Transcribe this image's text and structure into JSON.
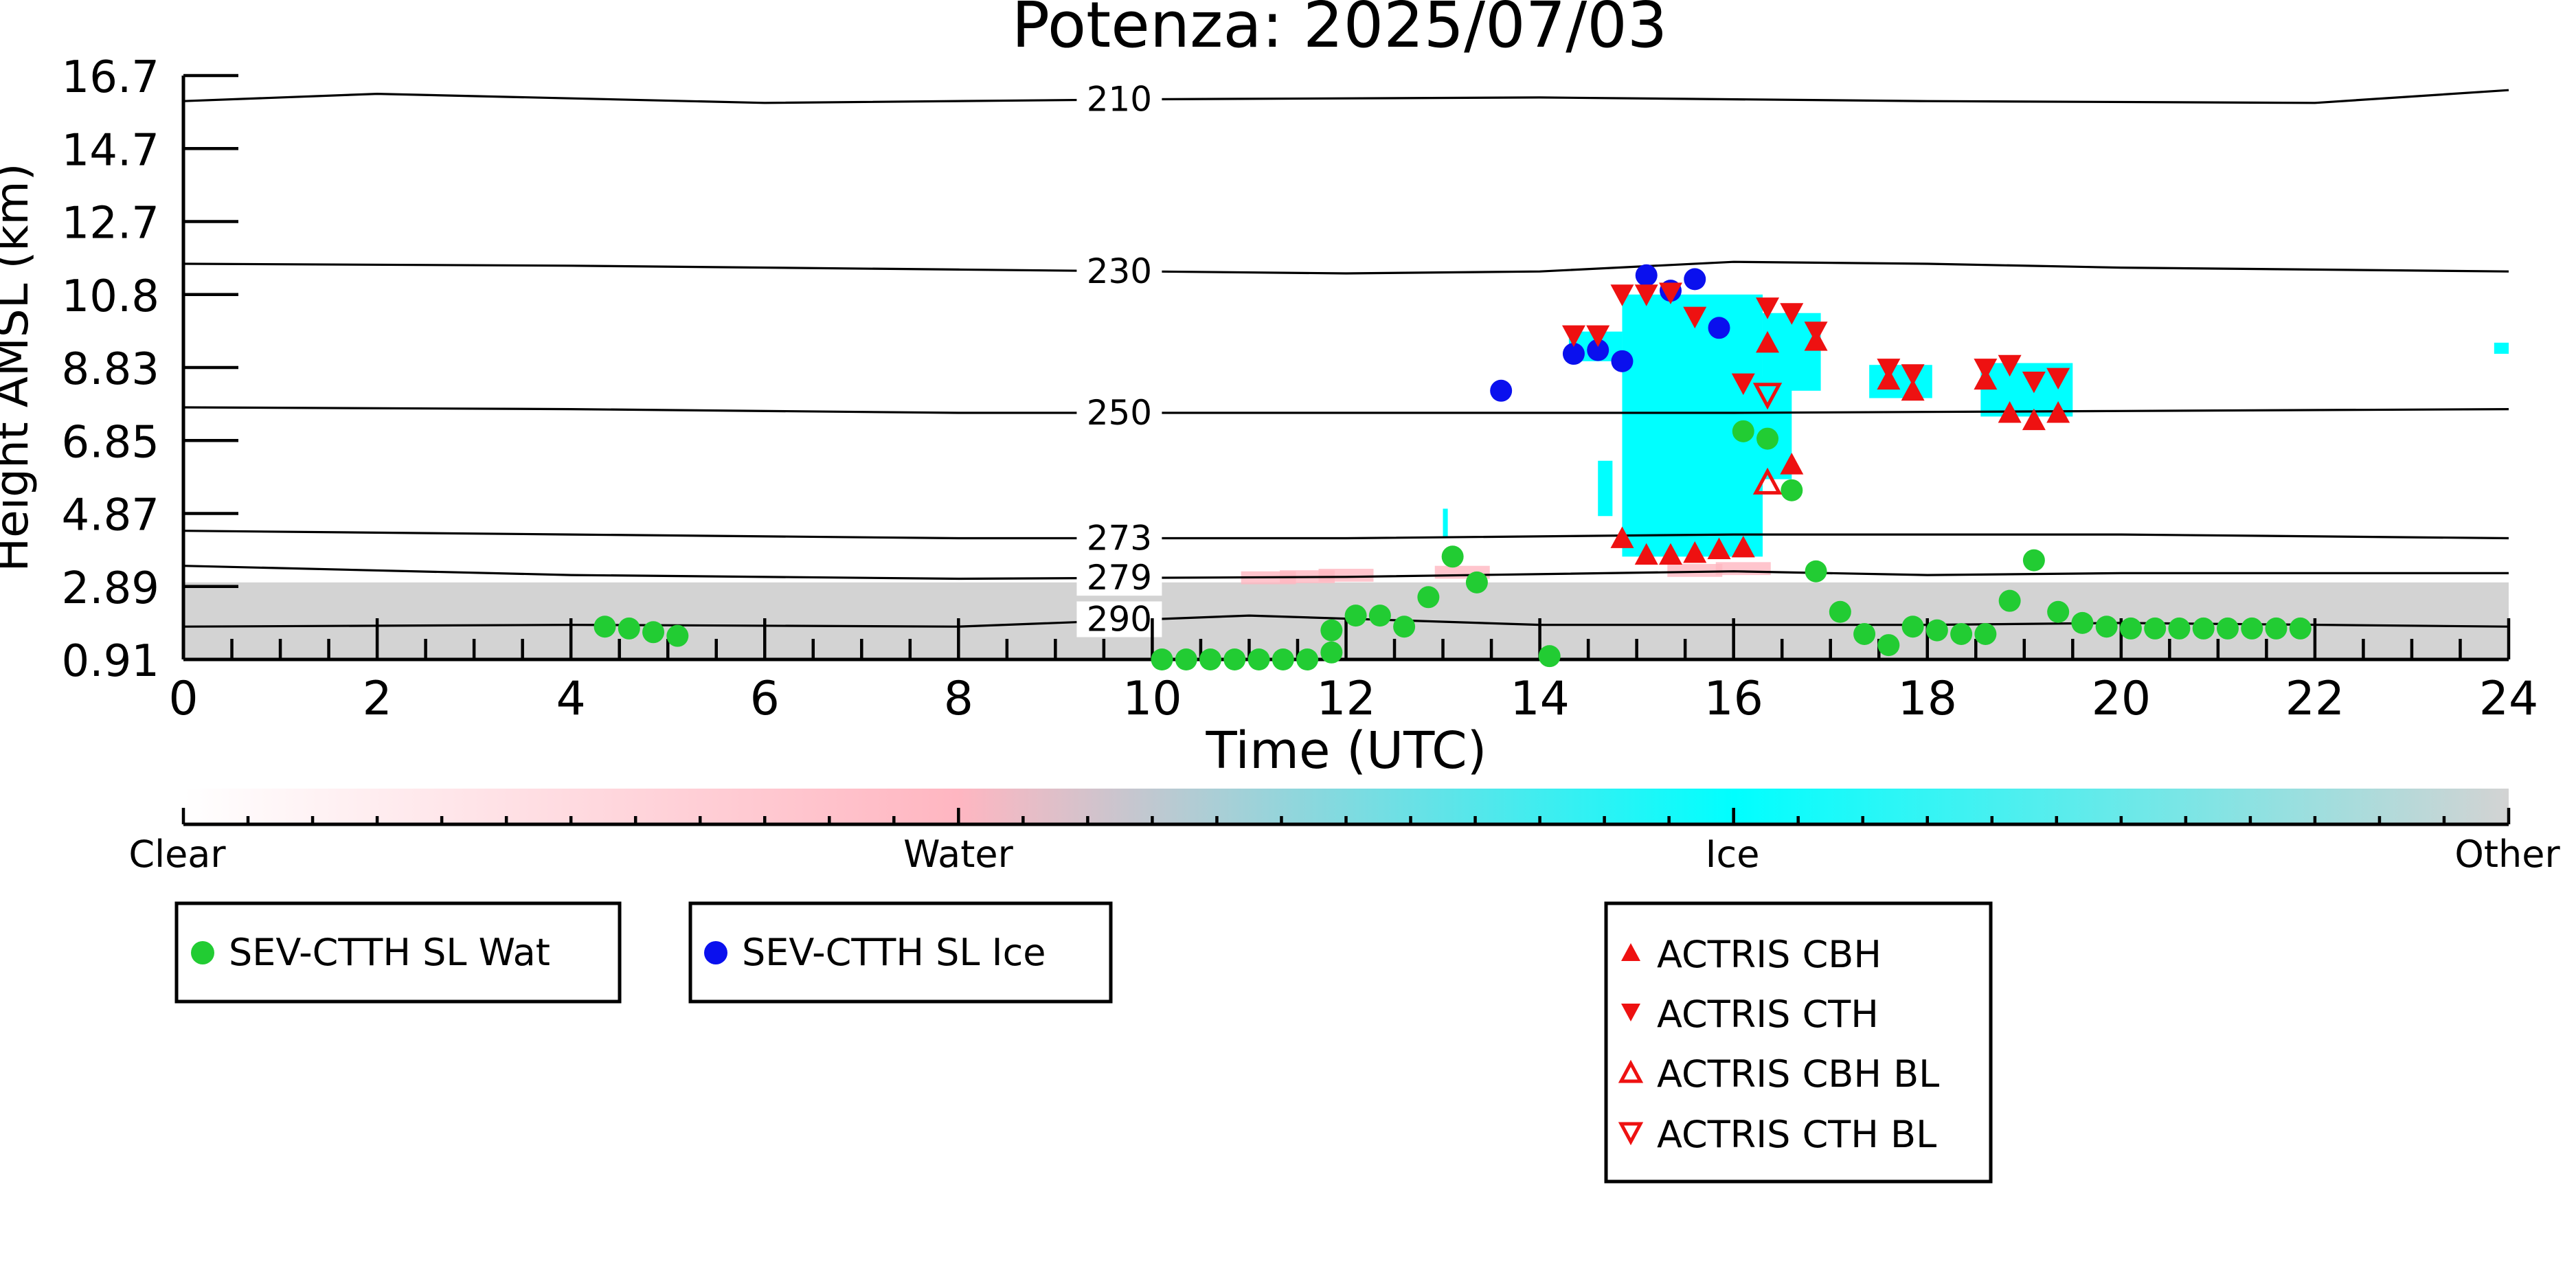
{
  "chart_data": {
    "type": "scatter",
    "title": "Potenza: 2025/07/03",
    "xlabel": "Time (UTC)",
    "ylabel": "Height AMSL (km)",
    "xlim": [
      0,
      24
    ],
    "ylim": [
      0.91,
      16.7
    ],
    "x_ticks": [
      "0",
      "2",
      "4",
      "6",
      "8",
      "10",
      "12",
      "14",
      "16",
      "18",
      "20",
      "22",
      "24"
    ],
    "y_ticks": [
      "0.91",
      "2.89",
      "4.87",
      "6.85",
      "8.83",
      "10.8",
      "12.7",
      "14.7",
      "16.7"
    ],
    "y_tick_values": [
      0.91,
      2.89,
      4.87,
      6.85,
      8.83,
      10.8,
      12.7,
      14.7,
      16.7
    ],
    "colorbar": {
      "labels": [
        "Clear",
        "Water",
        "Ice",
        "Other"
      ],
      "colors": [
        "#ffffff",
        "#ffb6c1",
        "#00ffff",
        "#d3d3d3"
      ]
    },
    "temperature_contours": [
      {
        "label": "210",
        "points": [
          [
            0,
            16.0
          ],
          [
            2,
            16.2
          ],
          [
            6,
            15.95
          ],
          [
            10,
            16.05
          ],
          [
            14,
            16.1
          ],
          [
            18,
            16.0
          ],
          [
            22,
            15.95
          ],
          [
            24,
            16.3
          ]
        ]
      },
      {
        "label": "230",
        "points": [
          [
            0,
            11.6
          ],
          [
            4,
            11.55
          ],
          [
            8,
            11.45
          ],
          [
            12,
            11.35
          ],
          [
            14,
            11.4
          ],
          [
            16,
            11.65
          ],
          [
            18,
            11.6
          ],
          [
            20,
            11.5
          ],
          [
            24,
            11.4
          ]
        ]
      },
      {
        "label": "250",
        "points": [
          [
            0,
            7.75
          ],
          [
            4,
            7.7
          ],
          [
            8,
            7.6
          ],
          [
            12,
            7.6
          ],
          [
            16,
            7.6
          ],
          [
            20,
            7.65
          ],
          [
            24,
            7.7
          ]
        ]
      },
      {
        "label": "273",
        "points": [
          [
            0,
            4.4
          ],
          [
            4,
            4.3
          ],
          [
            8,
            4.2
          ],
          [
            12,
            4.2
          ],
          [
            16,
            4.3
          ],
          [
            20,
            4.3
          ],
          [
            24,
            4.2
          ]
        ]
      },
      {
        "label": "279",
        "points": [
          [
            0,
            3.45
          ],
          [
            4,
            3.2
          ],
          [
            8,
            3.1
          ],
          [
            12,
            3.15
          ],
          [
            16,
            3.3
          ],
          [
            18,
            3.2
          ],
          [
            20,
            3.25
          ],
          [
            24,
            3.25
          ]
        ]
      },
      {
        "label": "290",
        "points": [
          [
            0,
            1.8
          ],
          [
            4,
            1.85
          ],
          [
            8,
            1.8
          ],
          [
            11,
            2.1
          ],
          [
            14,
            1.85
          ],
          [
            18,
            1.85
          ],
          [
            20,
            1.9
          ],
          [
            24,
            1.8
          ]
        ]
      }
    ],
    "series": [
      {
        "name": "SEV-CTTH SL Wat",
        "color": "#22cc33",
        "marker": "circle",
        "points": [
          [
            4.35,
            1.8
          ],
          [
            4.6,
            1.75
          ],
          [
            4.85,
            1.65
          ],
          [
            5.1,
            1.55
          ],
          [
            10.1,
            0.91
          ],
          [
            10.35,
            0.91
          ],
          [
            10.6,
            0.91
          ],
          [
            10.85,
            0.91
          ],
          [
            11.1,
            0.91
          ],
          [
            11.35,
            0.91
          ],
          [
            11.6,
            0.91
          ],
          [
            11.85,
            1.1
          ],
          [
            11.85,
            1.7
          ],
          [
            12.1,
            2.1
          ],
          [
            12.35,
            2.1
          ],
          [
            12.6,
            1.8
          ],
          [
            12.85,
            2.6
          ],
          [
            13.1,
            3.7
          ],
          [
            13.35,
            3.0
          ],
          [
            14.1,
            1.0
          ],
          [
            16.1,
            7.1
          ],
          [
            16.35,
            6.9
          ],
          [
            16.6,
            5.5
          ],
          [
            16.85,
            3.3
          ],
          [
            17.1,
            2.2
          ],
          [
            17.35,
            1.6
          ],
          [
            17.6,
            1.3
          ],
          [
            17.85,
            1.8
          ],
          [
            18.1,
            1.7
          ],
          [
            18.35,
            1.6
          ],
          [
            18.6,
            1.6
          ],
          [
            18.85,
            2.5
          ],
          [
            19.1,
            3.6
          ],
          [
            19.35,
            2.2
          ],
          [
            19.6,
            1.9
          ],
          [
            19.85,
            1.8
          ],
          [
            20.1,
            1.75
          ],
          [
            20.35,
            1.75
          ],
          [
            20.6,
            1.75
          ],
          [
            20.85,
            1.75
          ],
          [
            21.1,
            1.75
          ],
          [
            21.35,
            1.75
          ],
          [
            21.6,
            1.75
          ],
          [
            21.85,
            1.75
          ]
        ]
      },
      {
        "name": "SEV-CTTH SL Ice",
        "color": "#0a10ee",
        "marker": "circle",
        "points": [
          [
            13.6,
            8.2
          ],
          [
            14.35,
            9.2
          ],
          [
            14.6,
            9.3
          ],
          [
            14.85,
            9.0
          ],
          [
            15.1,
            11.3
          ],
          [
            15.35,
            10.9
          ],
          [
            15.6,
            11.2
          ],
          [
            15.85,
            9.9
          ]
        ]
      },
      {
        "name": "ACTRIS CBH",
        "color": "#ee1111",
        "marker": "triangle-up",
        "points": [
          [
            14.85,
            4.2
          ],
          [
            15.1,
            3.75
          ],
          [
            15.35,
            3.75
          ],
          [
            15.6,
            3.8
          ],
          [
            15.85,
            3.9
          ],
          [
            16.1,
            3.95
          ],
          [
            16.35,
            9.5
          ],
          [
            16.6,
            6.2
          ],
          [
            16.85,
            9.55
          ],
          [
            17.6,
            8.5
          ],
          [
            17.85,
            8.2
          ],
          [
            18.6,
            8.5
          ],
          [
            18.85,
            7.6
          ],
          [
            19.1,
            7.4
          ],
          [
            19.35,
            7.6
          ]
        ]
      },
      {
        "name": "ACTRIS CTH",
        "color": "#ee1111",
        "marker": "triangle-down",
        "points": [
          [
            14.35,
            9.7
          ],
          [
            14.6,
            9.7
          ],
          [
            14.85,
            10.8
          ],
          [
            15.1,
            10.8
          ],
          [
            15.35,
            10.85
          ],
          [
            15.6,
            10.2
          ],
          [
            16.1,
            8.4
          ],
          [
            16.35,
            10.45
          ],
          [
            16.6,
            10.3
          ],
          [
            16.85,
            9.8
          ],
          [
            17.6,
            8.8
          ],
          [
            17.85,
            8.65
          ],
          [
            18.6,
            8.8
          ],
          [
            18.85,
            8.9
          ],
          [
            19.1,
            8.45
          ],
          [
            19.35,
            8.55
          ]
        ]
      },
      {
        "name": "ACTRIS CBH BL",
        "color": "#ee1111",
        "marker": "triangle-up-open",
        "points": [
          [
            16.35,
            5.7
          ]
        ]
      },
      {
        "name": "ACTRIS CTH BL",
        "color": "#ee1111",
        "marker": "triangle-down-open",
        "points": [
          [
            16.35,
            8.1
          ]
        ]
      }
    ],
    "legend_groups": [
      [
        0
      ],
      [
        1
      ],
      [
        2,
        3,
        4,
        5
      ]
    ]
  }
}
